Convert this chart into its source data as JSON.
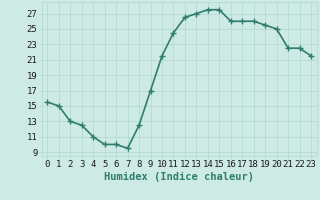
{
  "x": [
    0,
    1,
    2,
    3,
    4,
    5,
    6,
    7,
    8,
    9,
    10,
    11,
    12,
    13,
    14,
    15,
    16,
    17,
    18,
    19,
    20,
    21,
    22,
    23
  ],
  "y": [
    15.5,
    15.0,
    13.0,
    12.5,
    11.0,
    10.0,
    10.0,
    9.5,
    12.5,
    17.0,
    21.5,
    24.5,
    26.5,
    27.0,
    27.5,
    27.5,
    26.0,
    26.0,
    26.0,
    25.5,
    25.0,
    22.5,
    22.5,
    21.5
  ],
  "color": "#2e7d6e",
  "bg_color": "#cdeae4",
  "grid_color": "#b0d8d0",
  "xlabel": "Humidex (Indice chaleur)",
  "ylim": [
    8.5,
    28.5
  ],
  "xlim": [
    -0.5,
    23.5
  ],
  "yticks": [
    9,
    11,
    13,
    15,
    17,
    19,
    21,
    23,
    25,
    27
  ],
  "xticks": [
    0,
    1,
    2,
    3,
    4,
    5,
    6,
    7,
    8,
    9,
    10,
    11,
    12,
    13,
    14,
    15,
    16,
    17,
    18,
    19,
    20,
    21,
    22,
    23
  ],
  "xtick_labels": [
    "0",
    "1",
    "2",
    "3",
    "4",
    "5",
    "6",
    "7",
    "8",
    "9",
    "10",
    "11",
    "12",
    "13",
    "14",
    "15",
    "16",
    "17",
    "18",
    "19",
    "20",
    "21",
    "22",
    "23"
  ],
  "marker": "+",
  "linewidth": 1.2,
  "markersize": 4,
  "markeredgewidth": 1.0,
  "tick_fontsize": 6.5,
  "xlabel_fontsize": 7.5
}
